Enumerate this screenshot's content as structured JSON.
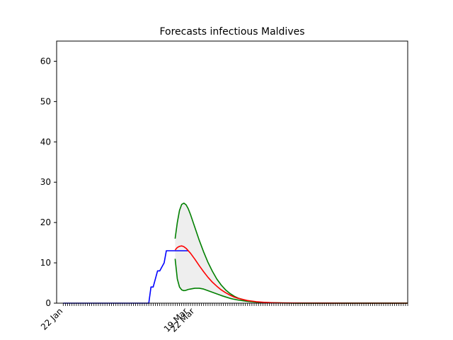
{
  "chart_data": {
    "type": "line",
    "title": "Forecasts infectious Maldives",
    "xlabel": "",
    "ylabel": "",
    "x_range_days": [
      -3,
      157
    ],
    "ylim": [
      0,
      65
    ],
    "yticks": [
      0,
      10,
      20,
      30,
      40,
      50,
      60
    ],
    "xtick_labels": [
      {
        "day": 0,
        "label": "22 Jan"
      },
      {
        "day": 57,
        "label": "19 Mar"
      },
      {
        "day": 60,
        "label": "22 Mar"
      }
    ],
    "minor_ticks": {
      "from_day": 0,
      "to_day": 157,
      "step": 1
    },
    "grid": false,
    "legend": "none",
    "colors": {
      "observed": "#0000ff",
      "forecast_mean": "#ff0000",
      "forecast_bounds": "#008000",
      "band_fill": "#eeeeee"
    },
    "observed": {
      "x": [
        0,
        39,
        40,
        41,
        42,
        43,
        44,
        45,
        46,
        47,
        48,
        49,
        50,
        51,
        52,
        53,
        54,
        55,
        56,
        57
      ],
      "y": [
        0,
        0,
        4,
        4,
        6,
        8,
        8,
        9,
        10,
        13,
        13,
        13,
        13,
        13,
        13,
        13,
        13,
        13,
        13,
        13
      ]
    },
    "forecast_mean": {
      "x": [
        51,
        52,
        53,
        54,
        55,
        56,
        58,
        60,
        62,
        64,
        66,
        68,
        70,
        72,
        74,
        76,
        78,
        80,
        84,
        88,
        92,
        96,
        100,
        110,
        120,
        130,
        140,
        157
      ],
      "y": [
        13.2,
        13.8,
        14.1,
        14.2,
        14.0,
        13.6,
        12.4,
        10.9,
        9.3,
        7.8,
        6.4,
        5.2,
        4.2,
        3.3,
        2.6,
        2.0,
        1.5,
        1.15,
        0.65,
        0.37,
        0.2,
        0.11,
        0.06,
        0.02,
        0.01,
        0,
        0,
        0
      ]
    },
    "forecast_upper": {
      "x": [
        51,
        52,
        53,
        54,
        55,
        56,
        57,
        58,
        60,
        62,
        64,
        66,
        68,
        70,
        72,
        74,
        76,
        78,
        80,
        84,
        88,
        92,
        96,
        100,
        110,
        120,
        130,
        157
      ],
      "y": [
        16,
        20,
        23,
        24.5,
        24.8,
        24.4,
        23.4,
        22.0,
        18.8,
        15.6,
        12.7,
        10.1,
        7.9,
        6.0,
        4.5,
        3.3,
        2.4,
        1.7,
        1.2,
        0.6,
        0.3,
        0.15,
        0.07,
        0.03,
        0.01,
        0,
        0,
        0
      ]
    },
    "forecast_lower": {
      "x": [
        51,
        52,
        53,
        54,
        55,
        56,
        57,
        58,
        60,
        62,
        64,
        66,
        68,
        70,
        72,
        74,
        76,
        78,
        80,
        84,
        88,
        92,
        96,
        100,
        110,
        120,
        130,
        157
      ],
      "y": [
        11,
        6,
        4,
        3.3,
        3.1,
        3.2,
        3.4,
        3.5,
        3.7,
        3.7,
        3.5,
        3.1,
        2.7,
        2.3,
        1.9,
        1.55,
        1.2,
        0.95,
        0.75,
        0.45,
        0.26,
        0.15,
        0.09,
        0.05,
        0.01,
        0,
        0,
        0
      ]
    }
  }
}
